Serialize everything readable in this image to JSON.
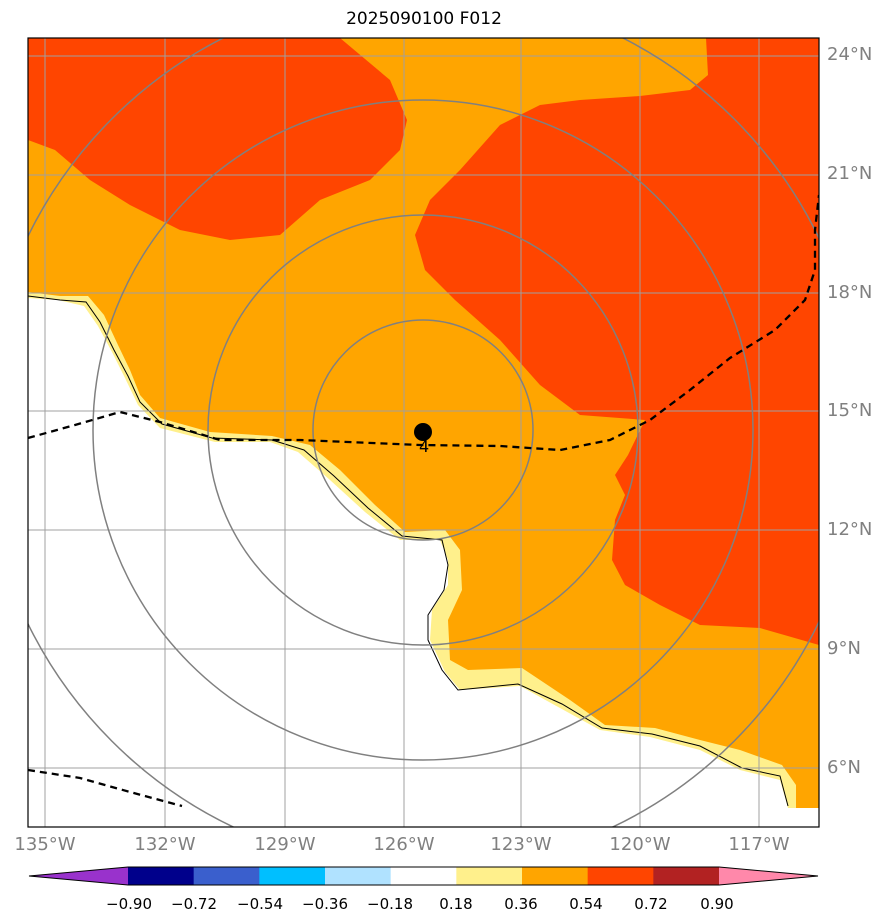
{
  "title": "2025090100 F012",
  "lat_labels": [
    "24°N",
    "21°N",
    "18°N",
    "15°N",
    "12°N",
    "9°N",
    "6°N"
  ],
  "lon_labels": [
    "135°W",
    "132°W",
    "129°W",
    "126°W",
    "123°W",
    "120°W",
    "117°W"
  ],
  "storm_marker_label": "4",
  "colorbar": {
    "ticks": [
      "−0.90",
      "−0.72",
      "−0.54",
      "−0.36",
      "−0.18",
      "0.18",
      "0.36",
      "0.54",
      "0.72",
      "0.90"
    ],
    "colors": [
      "#9932cc",
      "#00008b",
      "#3a5fcd",
      "#00bfff",
      "#b0e2ff",
      "#ffffff",
      "#fff08c",
      "#ffa500",
      "#ff4500",
      "#b22222",
      "#ff88aa"
    ]
  },
  "colors": {
    "land": "#ffffff",
    "field_low": "#fff08c",
    "field_mid": "#ffa500",
    "field_high": "#ff4500",
    "grid": "#a0a0a0",
    "range_rings": "#808080",
    "track": "#000000"
  }
}
